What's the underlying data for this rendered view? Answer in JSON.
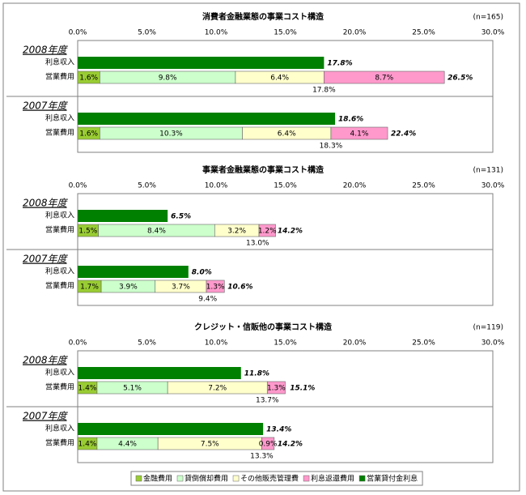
{
  "chart_data": [
    {
      "type": "bar",
      "title": "消費者金融業態の事業コスト構造",
      "note": "(n=165)",
      "xlim": [
        0,
        30
      ],
      "xticks": [
        {
          "value": 0,
          "label": "0.0%"
        },
        {
          "value": 5,
          "label": "5.0%"
        },
        {
          "value": 10,
          "label": "10.0%"
        },
        {
          "value": 15,
          "label": "15.0%"
        },
        {
          "value": 20,
          "label": "20.0%"
        },
        {
          "value": 25,
          "label": "25.0%"
        },
        {
          "value": 30,
          "label": "30.0%"
        }
      ],
      "grid": false,
      "groups": [
        "2008年度",
        "2007年度"
      ],
      "rows": [
        "利息収入",
        "営業費用"
      ],
      "series": [
        {
          "color": "#99cc33",
          "values": [
            1.6,
            1.6
          ],
          "value_labels": [
            "1.6%",
            "1.6%"
          ]
        },
        {
          "color": "#ccffcc",
          "values": [
            9.8,
            10.3
          ],
          "value_labels": [
            "9.8%",
            "10.3%"
          ]
        },
        {
          "color": "#ffffcc",
          "values": [
            6.4,
            6.4
          ],
          "value_labels": [
            "6.4%",
            "6.4%"
          ]
        },
        {
          "color": "#ff99cc",
          "values": [
            8.7,
            4.1
          ],
          "value_labels": [
            "8.7%",
            "4.1%"
          ]
        },
        {
          "color": "#008000",
          "values": [
            17.8,
            18.6
          ],
          "value_labels": [
            "17.8%",
            "18.6%"
          ]
        }
      ],
      "totals": [
        26.5,
        22.4
      ],
      "total_labels": [
        "26.5%",
        "22.4%"
      ],
      "subtotals": [
        17.8,
        18.3
      ],
      "subtotal_labels": [
        "17.8%",
        "18.3%"
      ]
    },
    {
      "type": "bar",
      "title": "事業者金融業態の事業コスト構造",
      "note": "(n=131)",
      "xlim": [
        0,
        30
      ],
      "xticks": [
        {
          "value": 0,
          "label": "0.0%"
        },
        {
          "value": 5,
          "label": "5.0%"
        },
        {
          "value": 10,
          "label": "10.0%"
        },
        {
          "value": 15,
          "label": "15.0%"
        },
        {
          "value": 20,
          "label": "20.0%"
        },
        {
          "value": 25,
          "label": "25.0%"
        },
        {
          "value": 30,
          "label": "30.0%"
        }
      ],
      "grid": false,
      "groups": [
        "2008年度",
        "2007年度"
      ],
      "rows": [
        "利息収入",
        "営業費用"
      ],
      "series": [
        {
          "color": "#99cc33",
          "values": [
            1.5,
            1.7
          ],
          "value_labels": [
            "1.5%",
            "1.7%"
          ]
        },
        {
          "color": "#ccffcc",
          "values": [
            8.4,
            3.9
          ],
          "value_labels": [
            "8.4%",
            "3.9%"
          ]
        },
        {
          "color": "#ffffcc",
          "values": [
            3.2,
            3.7
          ],
          "value_labels": [
            "3.2%",
            "3.7%"
          ]
        },
        {
          "color": "#ff99cc",
          "values": [
            1.2,
            1.3
          ],
          "value_labels": [
            "1.2%",
            "1.3%"
          ]
        },
        {
          "color": "#008000",
          "values": [
            6.5,
            8.0
          ],
          "value_labels": [
            "6.5%",
            "8.0%"
          ]
        }
      ],
      "totals": [
        14.2,
        10.6
      ],
      "total_labels": [
        "14.2%",
        "10.6%"
      ],
      "subtotals": [
        13.0,
        9.4
      ],
      "subtotal_labels": [
        "13.0%",
        "9.4%"
      ]
    },
    {
      "type": "bar",
      "title": "クレジット・信販他の事業コスト構造",
      "note": "(n=119)",
      "xlim": [
        0,
        30
      ],
      "xticks": [
        {
          "value": 0,
          "label": "0.0%"
        },
        {
          "value": 5,
          "label": "5.0%"
        },
        {
          "value": 10,
          "label": "10.0%"
        },
        {
          "value": 15,
          "label": "15.0%"
        },
        {
          "value": 20,
          "label": "20.0%"
        },
        {
          "value": 25,
          "label": "25.0%"
        },
        {
          "value": 30,
          "label": "30.0%"
        }
      ],
      "grid": false,
      "groups": [
        "2008年度",
        "2007年度"
      ],
      "rows": [
        "利息収入",
        "営業費用"
      ],
      "series": [
        {
          "name": "金融費用",
          "color": "#99cc33",
          "values": [
            1.4,
            1.4
          ],
          "value_labels": [
            "1.4%",
            "1.4%"
          ]
        },
        {
          "name": "貸倒償却費用",
          "color": "#ccffcc",
          "values": [
            5.1,
            4.4
          ],
          "value_labels": [
            "5.1%",
            "4.4%"
          ]
        },
        {
          "name": "その他販売管理費",
          "color": "#ffffcc",
          "values": [
            7.2,
            7.5
          ],
          "value_labels": [
            "7.2%",
            "7.5%"
          ]
        },
        {
          "name": "利息返還費用",
          "color": "#ff99cc",
          "values": [
            1.3,
            0.9
          ],
          "value_labels": [
            "1.3%",
            "0.9%"
          ]
        },
        {
          "name": "営業貸付金利息",
          "color": "#008000",
          "values": [
            11.8,
            13.4
          ],
          "value_labels": [
            "11.8%",
            "13.4%"
          ]
        }
      ],
      "totals": [
        15.1,
        14.2
      ],
      "total_labels": [
        "15.1%",
        "14.2%"
      ],
      "subtotals": [
        13.7,
        13.3
      ],
      "subtotal_labels": [
        "13.7%",
        "13.3%"
      ]
    }
  ]
}
